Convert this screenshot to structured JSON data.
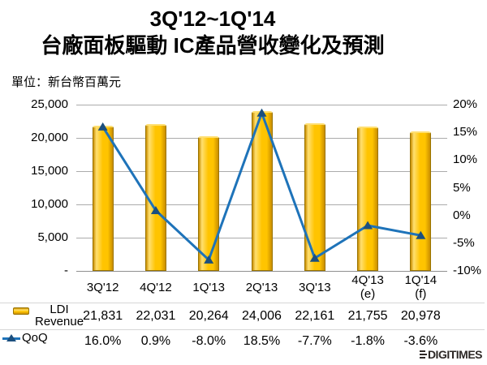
{
  "title": {
    "line1": "3Q'12~1Q'14",
    "line2": "台廠面板驅動 IC產品營收變化及預測"
  },
  "unit_label": "單位：新台幣百萬元",
  "chart_data": {
    "type": "combo-bar-line",
    "categories": [
      "3Q'12",
      "4Q'12",
      "1Q'13",
      "2Q'13",
      "3Q'13",
      "4Q'13\n(e)",
      "1Q'14\n(f)"
    ],
    "series": [
      {
        "name": "LDI Revenue",
        "type": "bar",
        "axis": "left",
        "values": [
          21831,
          22031,
          20264,
          24006,
          22161,
          21755,
          20978
        ]
      },
      {
        "name": "QoQ",
        "type": "line",
        "axis": "right",
        "values": [
          16.0,
          0.9,
          -8.0,
          18.5,
          -7.7,
          -1.8,
          -3.6
        ]
      }
    ],
    "left_axis": {
      "min": 0,
      "max": 25000,
      "tick_labels": [
        "25,000",
        "20,000",
        "15,000",
        "10,000",
        "5,000",
        "-"
      ]
    },
    "right_axis": {
      "min": -10,
      "max": 20,
      "tick_labels": [
        "20%",
        "15%",
        "10%",
        "5%",
        "0%",
        "-5%",
        "-10%"
      ]
    },
    "grid": true,
    "legend_position": "left-of-table-rows"
  },
  "table": {
    "rows": [
      {
        "label": "LDI\nRevenue",
        "values": [
          "21,831",
          "22,031",
          "20,264",
          "24,006",
          "22,161",
          "21,755",
          "20,978"
        ]
      },
      {
        "label": "QoQ",
        "values": [
          "16.0%",
          "0.9%",
          "-8.0%",
          "18.5%",
          "-7.7%",
          "-1.8%",
          "-3.6%"
        ]
      }
    ]
  },
  "footer": {
    "brand": "DIGITIMES"
  },
  "colors": {
    "bar_fill": "#ffc400",
    "bar_highlight": "#ffdf70",
    "bar_shadow": "#c98e00",
    "bar_border": "#9a7400",
    "line": "#1e73b9",
    "marker": "#1b4f7f",
    "grid": "#ababab",
    "axis_line": "#8f8f8f",
    "separator": "#d6d6d6",
    "text": "#000000",
    "logo": "#2d2826"
  }
}
